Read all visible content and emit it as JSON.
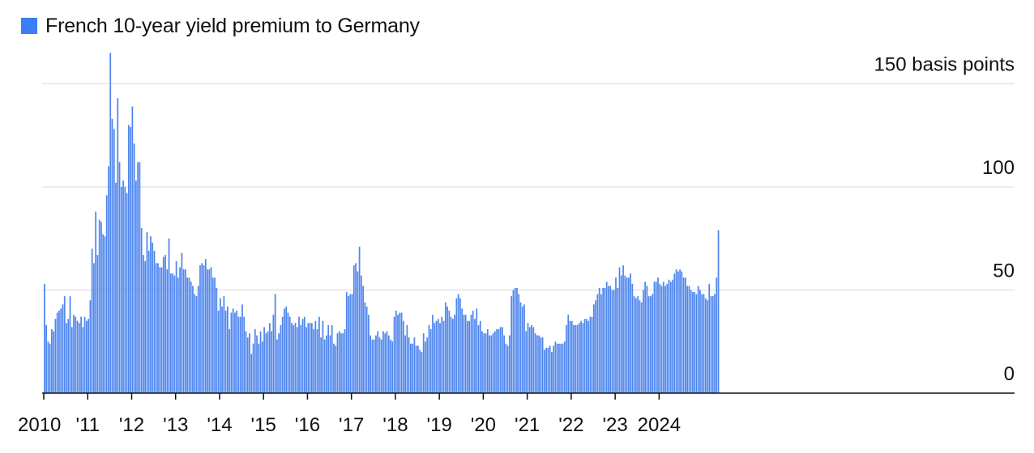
{
  "chart_data": {
    "type": "bar",
    "legend": [
      {
        "label": "French 10-year yield premium to Germany",
        "color": "#3a7df5"
      }
    ],
    "bar_color": "#4f86ee",
    "series": [
      {
        "name": "French 10-year yield premium to Germany",
        "x_start": "2010-01",
        "frequency": "2 bars per month",
        "values": [
          53,
          33,
          25,
          24,
          31,
          30,
          36,
          39,
          40,
          41,
          43,
          47,
          34,
          36,
          47,
          32,
          38,
          37,
          35,
          34,
          37,
          32,
          37,
          35,
          36,
          45,
          70,
          63,
          88,
          67,
          84,
          83,
          77,
          76,
          96,
          110,
          165,
          133,
          128,
          102,
          143,
          112,
          100,
          103,
          100,
          97,
          130,
          129,
          139,
          121,
          103,
          112,
          112,
          80,
          67,
          64,
          78,
          69,
          76,
          73,
          69,
          63,
          63,
          61,
          61,
          66,
          67,
          60,
          75,
          58,
          58,
          57,
          64,
          56,
          61,
          68,
          60,
          60,
          56,
          56,
          54,
          52,
          48,
          47,
          52,
          62,
          63,
          62,
          65,
          60,
          60,
          61,
          56,
          56,
          51,
          40,
          46,
          42,
          47,
          40,
          42,
          31,
          39,
          41,
          39,
          40,
          37,
          37,
          43,
          37,
          30,
          27,
          29,
          19,
          24,
          31,
          28,
          24,
          30,
          25,
          32,
          29,
          30,
          34,
          30,
          38,
          48,
          26,
          29,
          33,
          37,
          41,
          42,
          39,
          37,
          34,
          33,
          34,
          32,
          37,
          33,
          36,
          37,
          32,
          34,
          34,
          34,
          31,
          35,
          31,
          37,
          27,
          35,
          26,
          28,
          33,
          28,
          33,
          24,
          23,
          29,
          30,
          29,
          29,
          31,
          49,
          47,
          48,
          48,
          62,
          63,
          59,
          71,
          57,
          52,
          44,
          42,
          38,
          28,
          26,
          26,
          28,
          30,
          27,
          26,
          30,
          29,
          30,
          28,
          26,
          25,
          37,
          40,
          38,
          39,
          39,
          35,
          28,
          33,
          27,
          24,
          24,
          27,
          23,
          23,
          21,
          20,
          29,
          25,
          27,
          33,
          31,
          38,
          34,
          35,
          36,
          34,
          37,
          35,
          44,
          42,
          40,
          37,
          36,
          38,
          46,
          48,
          46,
          41,
          38,
          38,
          35,
          35,
          38,
          40,
          36,
          41,
          33,
          35,
          30,
          29,
          29,
          31,
          28,
          28,
          29,
          30,
          31,
          31,
          32,
          32,
          28,
          24,
          23,
          28,
          47,
          50,
          51,
          51,
          48,
          44,
          42,
          43,
          30,
          34,
          32,
          33,
          32,
          29,
          28,
          28,
          27,
          27,
          21,
          22,
          22,
          23,
          20,
          23,
          25,
          24,
          24,
          24,
          24,
          25,
          33,
          38,
          35,
          35,
          33,
          33,
          33,
          34,
          35,
          34,
          36,
          36,
          35,
          37,
          37,
          43,
          45,
          48,
          51,
          48,
          51,
          51,
          54,
          52,
          52,
          50,
          50,
          56,
          51,
          61,
          57,
          62,
          57,
          56,
          56,
          58,
          53,
          47,
          46,
          47,
          45,
          44,
          50,
          54,
          52,
          47,
          47,
          48,
          54,
          54,
          56,
          53,
          52,
          54,
          52,
          53,
          55,
          54,
          55,
          58,
          60,
          59,
          60,
          59,
          56,
          56,
          52,
          52,
          50,
          49,
          49,
          48,
          52,
          50,
          48,
          48,
          46,
          45,
          53,
          47,
          47,
          48,
          56,
          79
        ]
      }
    ],
    "yaxis": {
      "min": 0,
      "max": 150,
      "ticks": [
        0,
        50,
        100,
        150
      ],
      "tick_labels": [
        "0",
        "50",
        "100",
        "150 basis points"
      ],
      "unit": "basis points",
      "position": "right",
      "grid": true
    },
    "xaxis": {
      "tick_labels": [
        "2010",
        "'11",
        "'12",
        "'13",
        "'14",
        "'15",
        "'16",
        "'17",
        "'18",
        "'19",
        "'20",
        "'21",
        "'22",
        "'23",
        "2024"
      ]
    }
  }
}
